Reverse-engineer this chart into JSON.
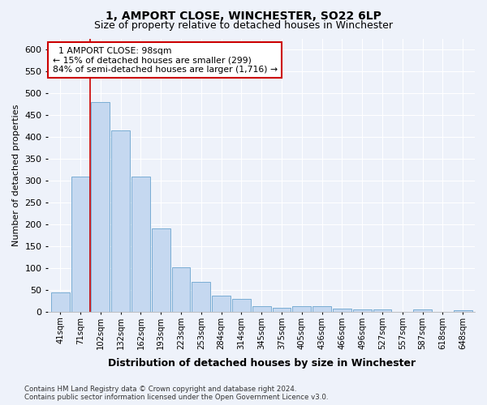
{
  "title": "1, AMPORT CLOSE, WINCHESTER, SO22 6LP",
  "subtitle": "Size of property relative to detached houses in Winchester",
  "xlabel": "Distribution of detached houses by size in Winchester",
  "ylabel": "Number of detached properties",
  "bar_color": "#c5d8f0",
  "bar_edge_color": "#7aadd4",
  "bin_labels": [
    "41sqm",
    "71sqm",
    "102sqm",
    "132sqm",
    "162sqm",
    "193sqm",
    "223sqm",
    "253sqm",
    "284sqm",
    "314sqm",
    "345sqm",
    "375sqm",
    "405sqm",
    "436sqm",
    "466sqm",
    "496sqm",
    "527sqm",
    "557sqm",
    "587sqm",
    "618sqm",
    "648sqm"
  ],
  "bar_values": [
    45,
    310,
    480,
    415,
    310,
    190,
    102,
    68,
    37,
    30,
    13,
    10,
    13,
    13,
    8,
    5,
    5,
    0,
    5,
    0,
    3
  ],
  "ylim": [
    0,
    625
  ],
  "yticks": [
    0,
    50,
    100,
    150,
    200,
    250,
    300,
    350,
    400,
    450,
    500,
    550,
    600
  ],
  "annotation_text": "  1 AMPORT CLOSE: 98sqm\n← 15% of detached houses are smaller (299)\n84% of semi-detached houses are larger (1,716) →",
  "annotation_box_color": "#ffffff",
  "annotation_box_edge": "#cc0000",
  "property_line_color": "#cc0000",
  "footnote1": "Contains HM Land Registry data © Crown copyright and database right 2024.",
  "footnote2": "Contains public sector information licensed under the Open Government Licence v3.0.",
  "background_color": "#eef2fa",
  "plot_background": "#eef2fa",
  "grid_color": "#ffffff",
  "title_fontsize": 10,
  "subtitle_fontsize": 9
}
